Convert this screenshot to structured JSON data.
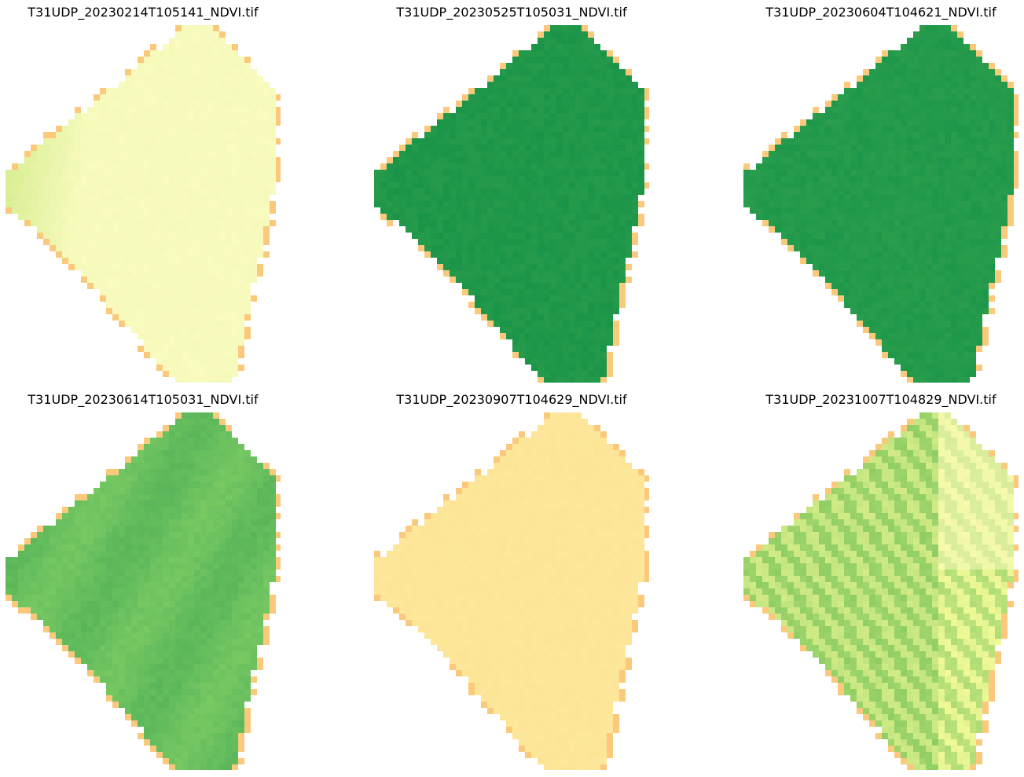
{
  "figure": {
    "colormap": "RdYlGn",
    "panels": [
      {
        "title": "T31UDP_20230214T105141_NDVI.tif",
        "style": "early",
        "fill": "#f9fbbf",
        "edge": "#fbc97c",
        "accent": "#cbe982"
      },
      {
        "title": "T31UDP_20230525T105031_NDVI.tif",
        "style": "dense",
        "fill": "#1a9448",
        "edge": "#fbc97c",
        "accent": "#6ebf5f"
      },
      {
        "title": "T31UDP_20230604T104621_NDVI.tif",
        "style": "dense2",
        "fill": "#1e974a",
        "edge": "#fbc97c",
        "accent": "#6ebf5f"
      },
      {
        "title": "T31UDP_20230614T105031_NDVI.tif",
        "style": "mottled",
        "fill": "#56b459",
        "edge": "#fbc97c",
        "accent": "#7fcd64"
      },
      {
        "title": "T31UDP_20230907T104629_NDVI.tif",
        "style": "bare",
        "fill": "#fde597",
        "edge": "#fbc97c",
        "accent": "#fdf3b0"
      },
      {
        "title": "T31UDP_20231007T104829_NDVI.tif",
        "style": "striped",
        "fill": "#d9ef8b",
        "edge": "#fbc97c",
        "accent": "#8ccc62"
      }
    ]
  }
}
